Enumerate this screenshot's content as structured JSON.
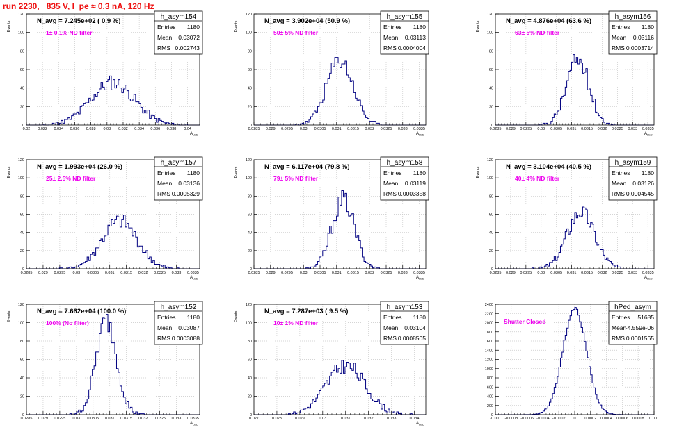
{
  "header": {
    "title": "run 2230,   835 V, I_pe ≈ 0.3 nA, 120 Hz"
  },
  "colors": {
    "header": "#ee1111",
    "hist_line": "#000080",
    "annotation": "#ee00ee",
    "grid": "#c8c8c8"
  },
  "chart_data": [
    {
      "type": "histogram",
      "name": "h_asym154",
      "avg_label": "N_avg = 7.245e+02 ( 0.9 %)",
      "filter_label": "1± 0.1% ND filter",
      "stats": {
        "entries": "1180",
        "mean": "0.03072",
        "rms": "0.002743"
      },
      "ylabel": "Events",
      "xlabel": "A_LED",
      "xlim": [
        0.02,
        0.0415
      ],
      "ylim": [
        0,
        120
      ],
      "yticks": [
        0,
        20,
        40,
        60,
        80,
        100,
        120
      ],
      "xticks": [
        "0.02",
        "0.022",
        "0.024",
        "0.026",
        "0.028",
        "0.03",
        "0.032",
        "0.034",
        "0.036",
        "0.038",
        "0.04"
      ],
      "peak": 46,
      "sigma": 0.0027,
      "center": 0.0307,
      "seed": 11
    },
    {
      "type": "histogram",
      "name": "h_asym155",
      "avg_label": "N_avg = 3.902e+04 (50.9 %)",
      "filter_label": "50± 5% ND filter",
      "stats": {
        "entries": "1180",
        "mean": "0.03113",
        "rms": "0.0004004"
      },
      "ylabel": "Events",
      "xlabel": "A_LED",
      "xlim": [
        0.0285,
        0.0337
      ],
      "ylim": [
        0,
        120
      ],
      "yticks": [
        0,
        20,
        40,
        60,
        80,
        100,
        120
      ],
      "xticks": [
        "0.0285",
        "0.029",
        "0.0295",
        "0.03",
        "0.0305",
        "0.031",
        "0.0315",
        "0.032",
        "0.0325",
        "0.033",
        "0.0335"
      ],
      "peak": 70,
      "sigma": 0.0004,
      "center": 0.0311,
      "seed": 23
    },
    {
      "type": "histogram",
      "name": "h_asym156",
      "avg_label": "N_avg = 4.876e+04 (63.6 %)",
      "filter_label": "63± 5% ND filter",
      "stats": {
        "entries": "1180",
        "mean": "0.03116",
        "rms": "0.0003714"
      },
      "ylabel": "Events",
      "xlabel": "A_LED",
      "xlim": [
        0.0285,
        0.0337
      ],
      "ylim": [
        0,
        120
      ],
      "yticks": [
        0,
        20,
        40,
        60,
        80,
        100,
        120
      ],
      "xticks": [
        "0.0285",
        "0.029",
        "0.0295",
        "0.03",
        "0.0305",
        "0.031",
        "0.0315",
        "0.032",
        "0.0325",
        "0.033",
        "0.0335"
      ],
      "peak": 71,
      "sigma": 0.00037,
      "center": 0.0312,
      "seed": 37
    },
    {
      "type": "histogram",
      "name": "h_asym157",
      "avg_label": "N_avg = 1.993e+04 (26.0 %)",
      "filter_label": "25± 2.5% ND filter",
      "stats": {
        "entries": "1180",
        "mean": "0.03136",
        "rms": "0.0005329"
      },
      "ylabel": "Events",
      "xlabel": "A_LED",
      "xlim": [
        0.0285,
        0.0337
      ],
      "ylim": [
        0,
        120
      ],
      "yticks": [
        0,
        20,
        40,
        60,
        80,
        100,
        120
      ],
      "xticks": [
        "0.0285",
        "0.029",
        "0.0295",
        "0.03",
        "0.0305",
        "0.031",
        "0.0315",
        "0.032",
        "0.0325",
        "0.033",
        "0.0335"
      ],
      "peak": 52,
      "sigma": 0.00053,
      "center": 0.0313,
      "seed": 41
    },
    {
      "type": "histogram",
      "name": "h_asym158",
      "avg_label": "N_avg = 6.117e+04 (79.8 %)",
      "filter_label": "79± 5% ND filter",
      "stats": {
        "entries": "1180",
        "mean": "0.03119",
        "rms": "0.0003358"
      },
      "ylabel": "Events",
      "xlabel": "A_LED",
      "xlim": [
        0.0285,
        0.0337
      ],
      "ylim": [
        0,
        120
      ],
      "yticks": [
        0,
        20,
        40,
        60,
        80,
        100,
        120
      ],
      "xticks": [
        "0.0285",
        "0.029",
        "0.0295",
        "0.03",
        "0.0305",
        "0.031",
        "0.0315",
        "0.032",
        "0.0325",
        "0.033",
        "0.0335"
      ],
      "peak": 76,
      "sigma": 0.00034,
      "center": 0.0312,
      "seed": 53
    },
    {
      "type": "histogram",
      "name": "h_asym159",
      "avg_label": "N_avg = 3.104e+04 (40.5 %)",
      "filter_label": "40± 4% ND filter",
      "stats": {
        "entries": "1180",
        "mean": "0.03126",
        "rms": "0.0004545"
      },
      "ylabel": "Events",
      "xlabel": "A_LED",
      "xlim": [
        0.0285,
        0.0337
      ],
      "ylim": [
        0,
        120
      ],
      "yticks": [
        0,
        20,
        40,
        60,
        80,
        100,
        120
      ],
      "xticks": [
        "0.0285",
        "0.029",
        "0.0295",
        "0.03",
        "0.0305",
        "0.031",
        "0.0315",
        "0.032",
        "0.0325",
        "0.033",
        "0.0335"
      ],
      "peak": 63,
      "sigma": 0.00045,
      "center": 0.0313,
      "seed": 67
    },
    {
      "type": "histogram",
      "name": "h_asym152",
      "avg_label": "N_avg = 7.662e+04 (100.0 %)",
      "filter_label": "100% (No filter)",
      "stats": {
        "entries": "1180",
        "mean": "0.03087",
        "rms": "0.0003088"
      },
      "ylabel": "Events",
      "xlabel": "A_LED",
      "xlim": [
        0.0285,
        0.0337
      ],
      "ylim": [
        0,
        120
      ],
      "yticks": [
        0,
        20,
        40,
        60,
        80,
        100,
        120
      ],
      "xticks": [
        "0.0285",
        "0.029",
        "0.0295",
        "0.03",
        "0.0305",
        "0.031",
        "0.0315",
        "0.032",
        "0.0325",
        "0.033",
        "0.0335"
      ],
      "peak": 102,
      "sigma": 0.00031,
      "center": 0.0309,
      "seed": 79
    },
    {
      "type": "histogram",
      "name": "h_asym153",
      "avg_label": "N_avg = 7.287e+03 ( 9.5 %)",
      "filter_label": "10± 1% ND filter",
      "stats": {
        "entries": "1180",
        "mean": "0.03104",
        "rms": "0.0008505"
      },
      "ylabel": "Events",
      "xlabel": "A_LED",
      "xlim": [
        0.027,
        0.0345
      ],
      "ylim": [
        0,
        120
      ],
      "yticks": [
        0,
        20,
        40,
        60,
        80,
        100,
        120
      ],
      "xticks": [
        "0.027",
        "0.028",
        "0.029",
        "0.03",
        "0.031",
        "0.032",
        "0.033",
        "0.034"
      ],
      "peak": 53,
      "sigma": 0.00085,
      "center": 0.031,
      "seed": 83
    },
    {
      "type": "histogram",
      "name": "hPed_asym",
      "avg_label": "",
      "filter_label": "Shutter Closed",
      "stats": {
        "entries": "51685",
        "mean": "-4.559e-06",
        "rms": "0.0001565"
      },
      "ylabel": "",
      "xlabel": "",
      "xlim": [
        -0.001,
        0.001
      ],
      "ylim": [
        0,
        2400
      ],
      "yticks": [
        0,
        200,
        400,
        600,
        800,
        1000,
        1200,
        1400,
        1600,
        1800,
        2000,
        2200,
        2400
      ],
      "xticks": [
        "-0.001",
        "-0.0008",
        "-0.0006",
        "-0.0004",
        "-0.0002",
        "0",
        "0.0002",
        "0.0004",
        "0.0006",
        "0.0008",
        "0.001"
      ],
      "peak": 2290,
      "sigma": 0.00015,
      "center": 0.0,
      "seed": 97
    }
  ]
}
